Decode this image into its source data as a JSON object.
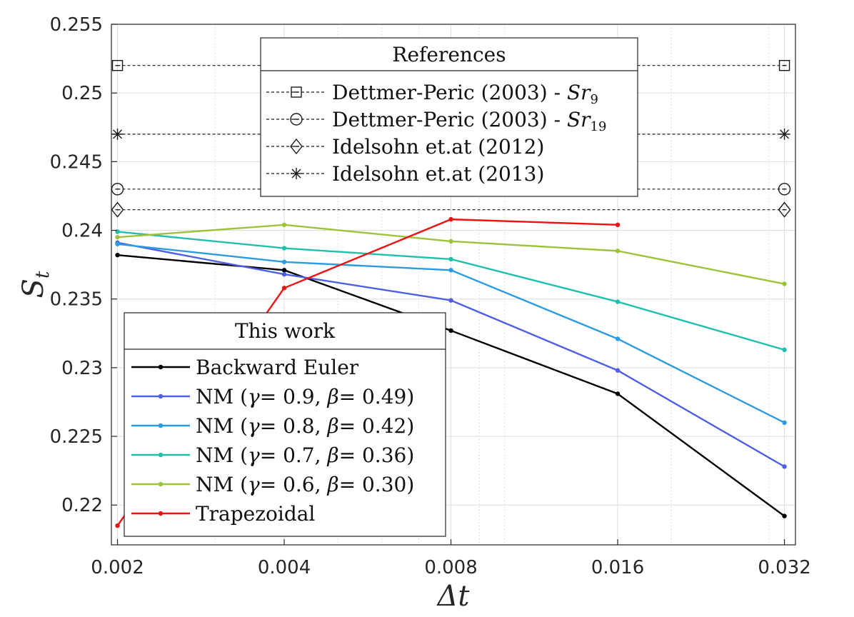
{
  "chart_data": {
    "type": "line",
    "x_scale": "log",
    "xlabel": "Δt",
    "ylabel": "S",
    "ylabel_subscript": "t",
    "xlim": [
      0.00195,
      0.0335
    ],
    "ylim": [
      0.2171,
      0.255
    ],
    "x_ticks": [
      0.002,
      0.004,
      0.008,
      0.016,
      0.032
    ],
    "x_tick_labels": [
      "0.002",
      "0.004",
      "0.008",
      "0.016",
      "0.032"
    ],
    "y_ticks": [
      0.22,
      0.225,
      0.23,
      0.235,
      0.24,
      0.245,
      0.25,
      0.255
    ],
    "y_tick_labels": [
      "0.22",
      "0.225",
      "0.23",
      "0.235",
      "0.24",
      "0.245",
      "0.25",
      "0.255"
    ],
    "grid": true,
    "series": [
      {
        "name": "Backward Euler",
        "color": "#000000",
        "x": [
          0.002,
          0.004,
          0.008,
          0.016,
          0.032
        ],
        "values": [
          0.2382,
          0.2371,
          0.2327,
          0.2281,
          0.2192
        ]
      },
      {
        "name": "NM (γ= 0.9, β= 0.49)",
        "label_main": "NM (",
        "gamma_sym": "γ",
        "gamma_val": "= 0.9, ",
        "beta_sym": "β",
        "beta_val": "= 0.49)",
        "color": "#4e5fe6",
        "x": [
          0.002,
          0.004,
          0.008,
          0.016,
          0.032
        ],
        "values": [
          0.2391,
          0.2368,
          0.2349,
          0.2298,
          0.2228
        ]
      },
      {
        "name": "NM (γ= 0.8, β= 0.42)",
        "label_main": "NM (",
        "gamma_sym": "γ",
        "gamma_val": "= 0.8, ",
        "beta_sym": "β",
        "beta_val": "= 0.42)",
        "color": "#2b9ce2",
        "x": [
          0.002,
          0.004,
          0.008,
          0.016,
          0.032
        ],
        "values": [
          0.239,
          0.2377,
          0.2371,
          0.2321,
          0.226
        ]
      },
      {
        "name": "NM (γ= 0.7, β= 0.36)",
        "label_main": "NM (",
        "gamma_sym": "γ",
        "gamma_val": "= 0.7, ",
        "beta_sym": "β",
        "beta_val": "= 0.36)",
        "color": "#1fbfae",
        "x": [
          0.002,
          0.004,
          0.008,
          0.016,
          0.032
        ],
        "values": [
          0.2399,
          0.2387,
          0.2379,
          0.2348,
          0.2313
        ]
      },
      {
        "name": "NM (γ= 0.6, β= 0.30)",
        "label_main": "NM (",
        "gamma_sym": "γ",
        "gamma_val": "= 0.6, ",
        "beta_sym": "β",
        "beta_val": "= 0.30)",
        "color": "#9cc43a",
        "x": [
          0.002,
          0.004,
          0.008,
          0.016,
          0.032
        ],
        "values": [
          0.2395,
          0.2404,
          0.2392,
          0.2385,
          0.2361
        ]
      },
      {
        "name": "Trapezoidal",
        "color": "#ee1111",
        "x": [
          0.002,
          0.004,
          0.008,
          0.016
        ],
        "values": [
          0.2185,
          0.2358,
          0.2408,
          0.2404
        ]
      }
    ],
    "references": [
      {
        "name": "Dettmer-Peric (2003) - Sr9",
        "label_main": "Dettmer-Peric (2003) - ",
        "label_sym": "Sr",
        "label_sub": "9",
        "marker": "square",
        "value": 0.252
      },
      {
        "name": "Dettmer-Peric (2003) - Sr19",
        "label_main": "Dettmer-Peric (2003) - ",
        "label_sym": "Sr",
        "label_sub": "19",
        "marker": "circle",
        "value": 0.243
      },
      {
        "name": "Idelsohn et.at (2012)",
        "label_main": "Idelsohn et.at (2012)",
        "marker": "diamond",
        "value": 0.2415
      },
      {
        "name": "Idelsohn et.at (2013)",
        "label_main": "Idelsohn et.at (2013)",
        "marker": "asterisk",
        "value": 0.247
      }
    ],
    "legend_references": {
      "title": "References",
      "placement": "top-center"
    },
    "legend_series": {
      "title": "This work",
      "placement": "bottom-left"
    }
  }
}
